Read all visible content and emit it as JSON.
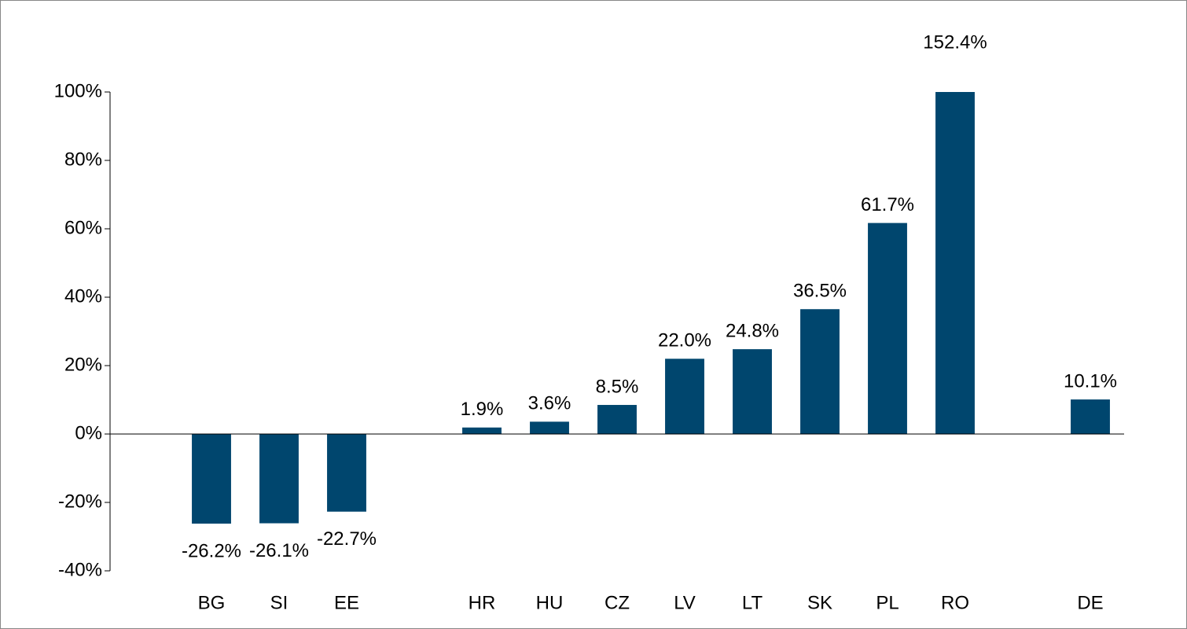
{
  "chart_data": {
    "type": "bar",
    "categories": [
      null,
      "BG",
      "SI",
      "EE",
      null,
      "HR",
      "HU",
      "CZ",
      "LV",
      "LT",
      "SK",
      "PL",
      "RO",
      null,
      "DE"
    ],
    "values": [
      null,
      -26.2,
      -26.1,
      -22.7,
      null,
      1.9,
      3.6,
      8.5,
      22.0,
      24.8,
      36.5,
      61.7,
      152.4,
      null,
      10.1
    ],
    "value_labels": [
      null,
      "-26.2%",
      "-26.1%",
      "-22.7%",
      null,
      "1.9%",
      "3.6%",
      "8.5%",
      "22.0%",
      "24.8%",
      "36.5%",
      "61.7%",
      "152.4%",
      null,
      "10.1%"
    ],
    "color": "#00466e",
    "ylim": [
      -40,
      100
    ],
    "yticks": [
      {
        "value": -40,
        "label": "-40%"
      },
      {
        "value": -20,
        "label": "-20%"
      },
      {
        "value": 0,
        "label": "0%"
      },
      {
        "value": 20,
        "label": "20%"
      },
      {
        "value": 40,
        "label": "40%"
      },
      {
        "value": 60,
        "label": "60%"
      },
      {
        "value": 80,
        "label": "80%"
      },
      {
        "value": 100,
        "label": "100%"
      }
    ],
    "grid": false
  }
}
